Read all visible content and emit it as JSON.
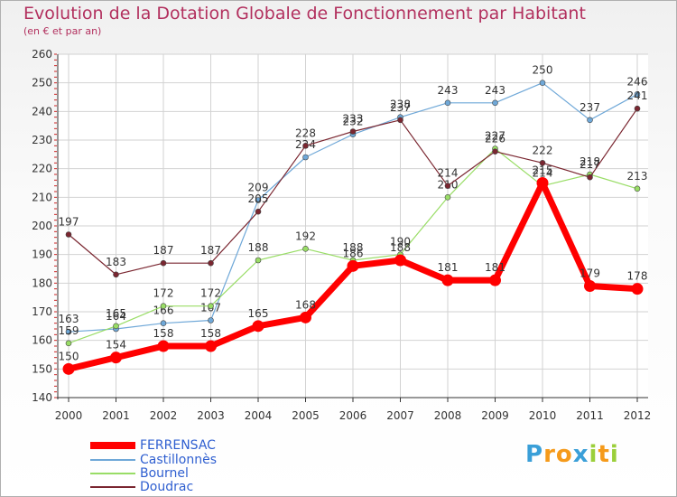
{
  "chart_data": {
    "type": "line",
    "title": "Evolution de la Dotation Globale de Fonctionnement par Habitant",
    "subtitle": "(en € et par an)",
    "xlabel": "",
    "ylabel": "",
    "x": [
      "2000",
      "2001",
      "2002",
      "2003",
      "2004",
      "2005",
      "2006",
      "2007",
      "2008",
      "2009",
      "2010",
      "2011",
      "2012"
    ],
    "ylim": [
      140,
      260
    ],
    "yticks": [
      140,
      150,
      160,
      170,
      180,
      190,
      200,
      210,
      220,
      230,
      240,
      250,
      260
    ],
    "grid": true,
    "legend": "bottom-left",
    "series": [
      {
        "name": "FERRENSAC",
        "color": "#ff0000",
        "values": [
          150,
          154,
          158,
          158,
          165,
          168,
          186,
          188,
          181,
          181,
          215,
          179,
          178
        ]
      },
      {
        "name": "Castillonnès",
        "color": "#6fa8d8",
        "values": [
          163,
          164,
          166,
          167,
          209,
          224,
          232,
          238,
          243,
          243,
          250,
          237,
          246
        ]
      },
      {
        "name": "Bournel",
        "color": "#99dd66",
        "values": [
          159,
          165,
          172,
          172,
          188,
          192,
          188,
          190,
          210,
          227,
          214,
          218,
          213
        ]
      },
      {
        "name": "Doudrac",
        "color": "#7a2630",
        "values": [
          197,
          183,
          187,
          187,
          205,
          228,
          233,
          237,
          214,
          226,
          222,
          217,
          241
        ]
      }
    ]
  },
  "logo": {
    "letters": [
      "P",
      "r",
      "o",
      "x",
      "i",
      "t",
      "i"
    ],
    "colors": [
      "#3a9fd8",
      "#f59a1a",
      "#f59a1a",
      "#3a9fd8",
      "#9bcf3a",
      "#f59a1a",
      "#9bcf3a"
    ]
  }
}
